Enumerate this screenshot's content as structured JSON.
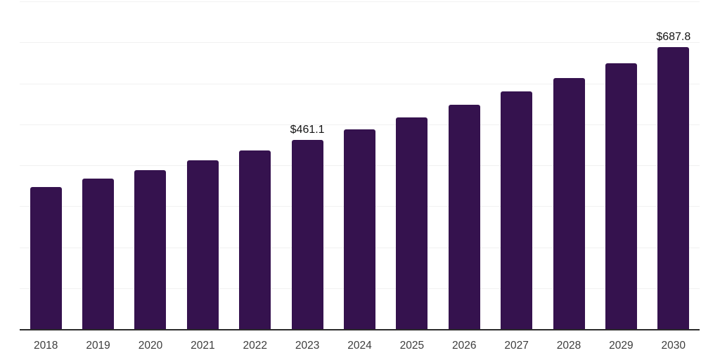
{
  "chart_data": {
    "type": "bar",
    "title": "",
    "xlabel": "",
    "ylabel": "",
    "categories": [
      "2018",
      "2019",
      "2020",
      "2021",
      "2022",
      "2023",
      "2024",
      "2025",
      "2026",
      "2027",
      "2028",
      "2029",
      "2030"
    ],
    "values": [
      346.6,
      366.9,
      388.5,
      411.3,
      435.5,
      461.1,
      488.2,
      516.9,
      547.3,
      579.5,
      613.5,
      649.6,
      687.8
    ],
    "point_labels": {
      "2023": "$461.1",
      "2030": "$687.8"
    },
    "ylim": [
      0,
      800
    ],
    "grid_step": 100,
    "grid": "horizontal-only",
    "legend_position": "none",
    "y_tick_labels_visible": false,
    "colors": {
      "bar": "#35124e",
      "gridline": "#f1f1f1",
      "axis_line": "#2b2b2b",
      "tick_label": "#3d3d3d",
      "value_label": "#141414",
      "background": "#ffffff"
    }
  }
}
